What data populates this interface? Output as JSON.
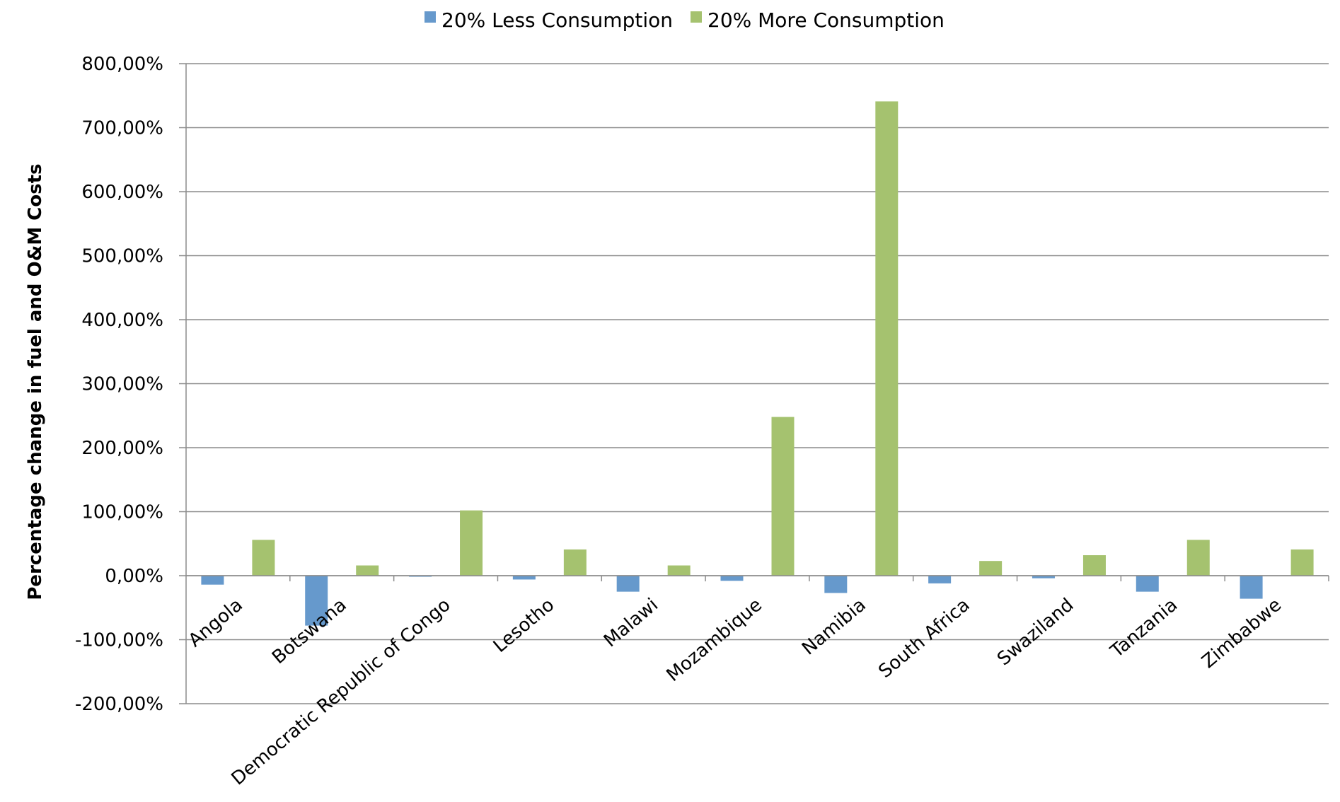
{
  "chart_data": {
    "type": "bar",
    "title": "",
    "xlabel": "",
    "ylabel": "Percentage change in fuel and O&M Costs",
    "ylim": [
      -200,
      800
    ],
    "y_ticks": [
      800,
      700,
      600,
      500,
      400,
      300,
      200,
      100,
      0,
      -100,
      -200
    ],
    "y_tick_labels": [
      "800,00%",
      "700,00%",
      "600,00%",
      "500,00%",
      "400,00%",
      "300,00%",
      "200,00%",
      "100,00%",
      "0,00%",
      "-100,00%",
      "-200,00%"
    ],
    "grid": true,
    "legend_position": "top-center",
    "categories": [
      "Angola",
      "Botswana",
      "Democratic Republic of Congo",
      "Lesotho",
      "Malawi",
      "Mozambique",
      "Namibia",
      "South Africa",
      "Swaziland",
      "Tanzania",
      "Zimbabwe"
    ],
    "series": [
      {
        "name": "20% Less Consumption",
        "color": "#6699CC",
        "values": [
          -14,
          -78,
          -1,
          -6,
          -25,
          -8,
          -27,
          -12,
          -4,
          -25,
          -36
        ]
      },
      {
        "name": "20% More Consumption",
        "color": "#A5C26F",
        "values": [
          56,
          16,
          102,
          41,
          16,
          248,
          741,
          23,
          32,
          56,
          41
        ]
      }
    ]
  }
}
